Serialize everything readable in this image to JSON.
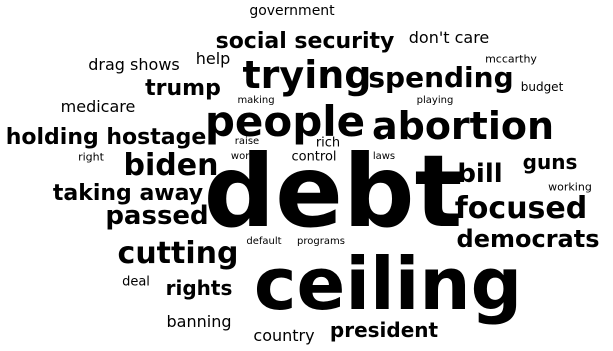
{
  "word_cloud": {
    "words": [
      {
        "text": "government"
      },
      {
        "text": "don't care"
      },
      {
        "text": "social security"
      },
      {
        "text": "help"
      },
      {
        "text": "mccarthy"
      },
      {
        "text": "drag shows"
      },
      {
        "text": "trying"
      },
      {
        "text": "spending"
      },
      {
        "text": "trump"
      },
      {
        "text": "budget"
      },
      {
        "text": "medicare"
      },
      {
        "text": "making"
      },
      {
        "text": "playing"
      },
      {
        "text": "people"
      },
      {
        "text": "abortion"
      },
      {
        "text": "holding hostage"
      },
      {
        "text": "raise"
      },
      {
        "text": "rich"
      },
      {
        "text": "right"
      },
      {
        "text": "work"
      },
      {
        "text": "control"
      },
      {
        "text": "laws"
      },
      {
        "text": "biden"
      },
      {
        "text": "guns"
      },
      {
        "text": "bill"
      },
      {
        "text": "working"
      },
      {
        "text": "taking away"
      },
      {
        "text": "debt"
      },
      {
        "text": "focused"
      },
      {
        "text": "passed"
      },
      {
        "text": "democrats"
      },
      {
        "text": "cutting"
      },
      {
        "text": "default"
      },
      {
        "text": "programs"
      },
      {
        "text": "ceiling"
      },
      {
        "text": "deal"
      },
      {
        "text": "rights"
      },
      {
        "text": "banning"
      },
      {
        "text": "president"
      },
      {
        "text": "country"
      }
    ]
  }
}
